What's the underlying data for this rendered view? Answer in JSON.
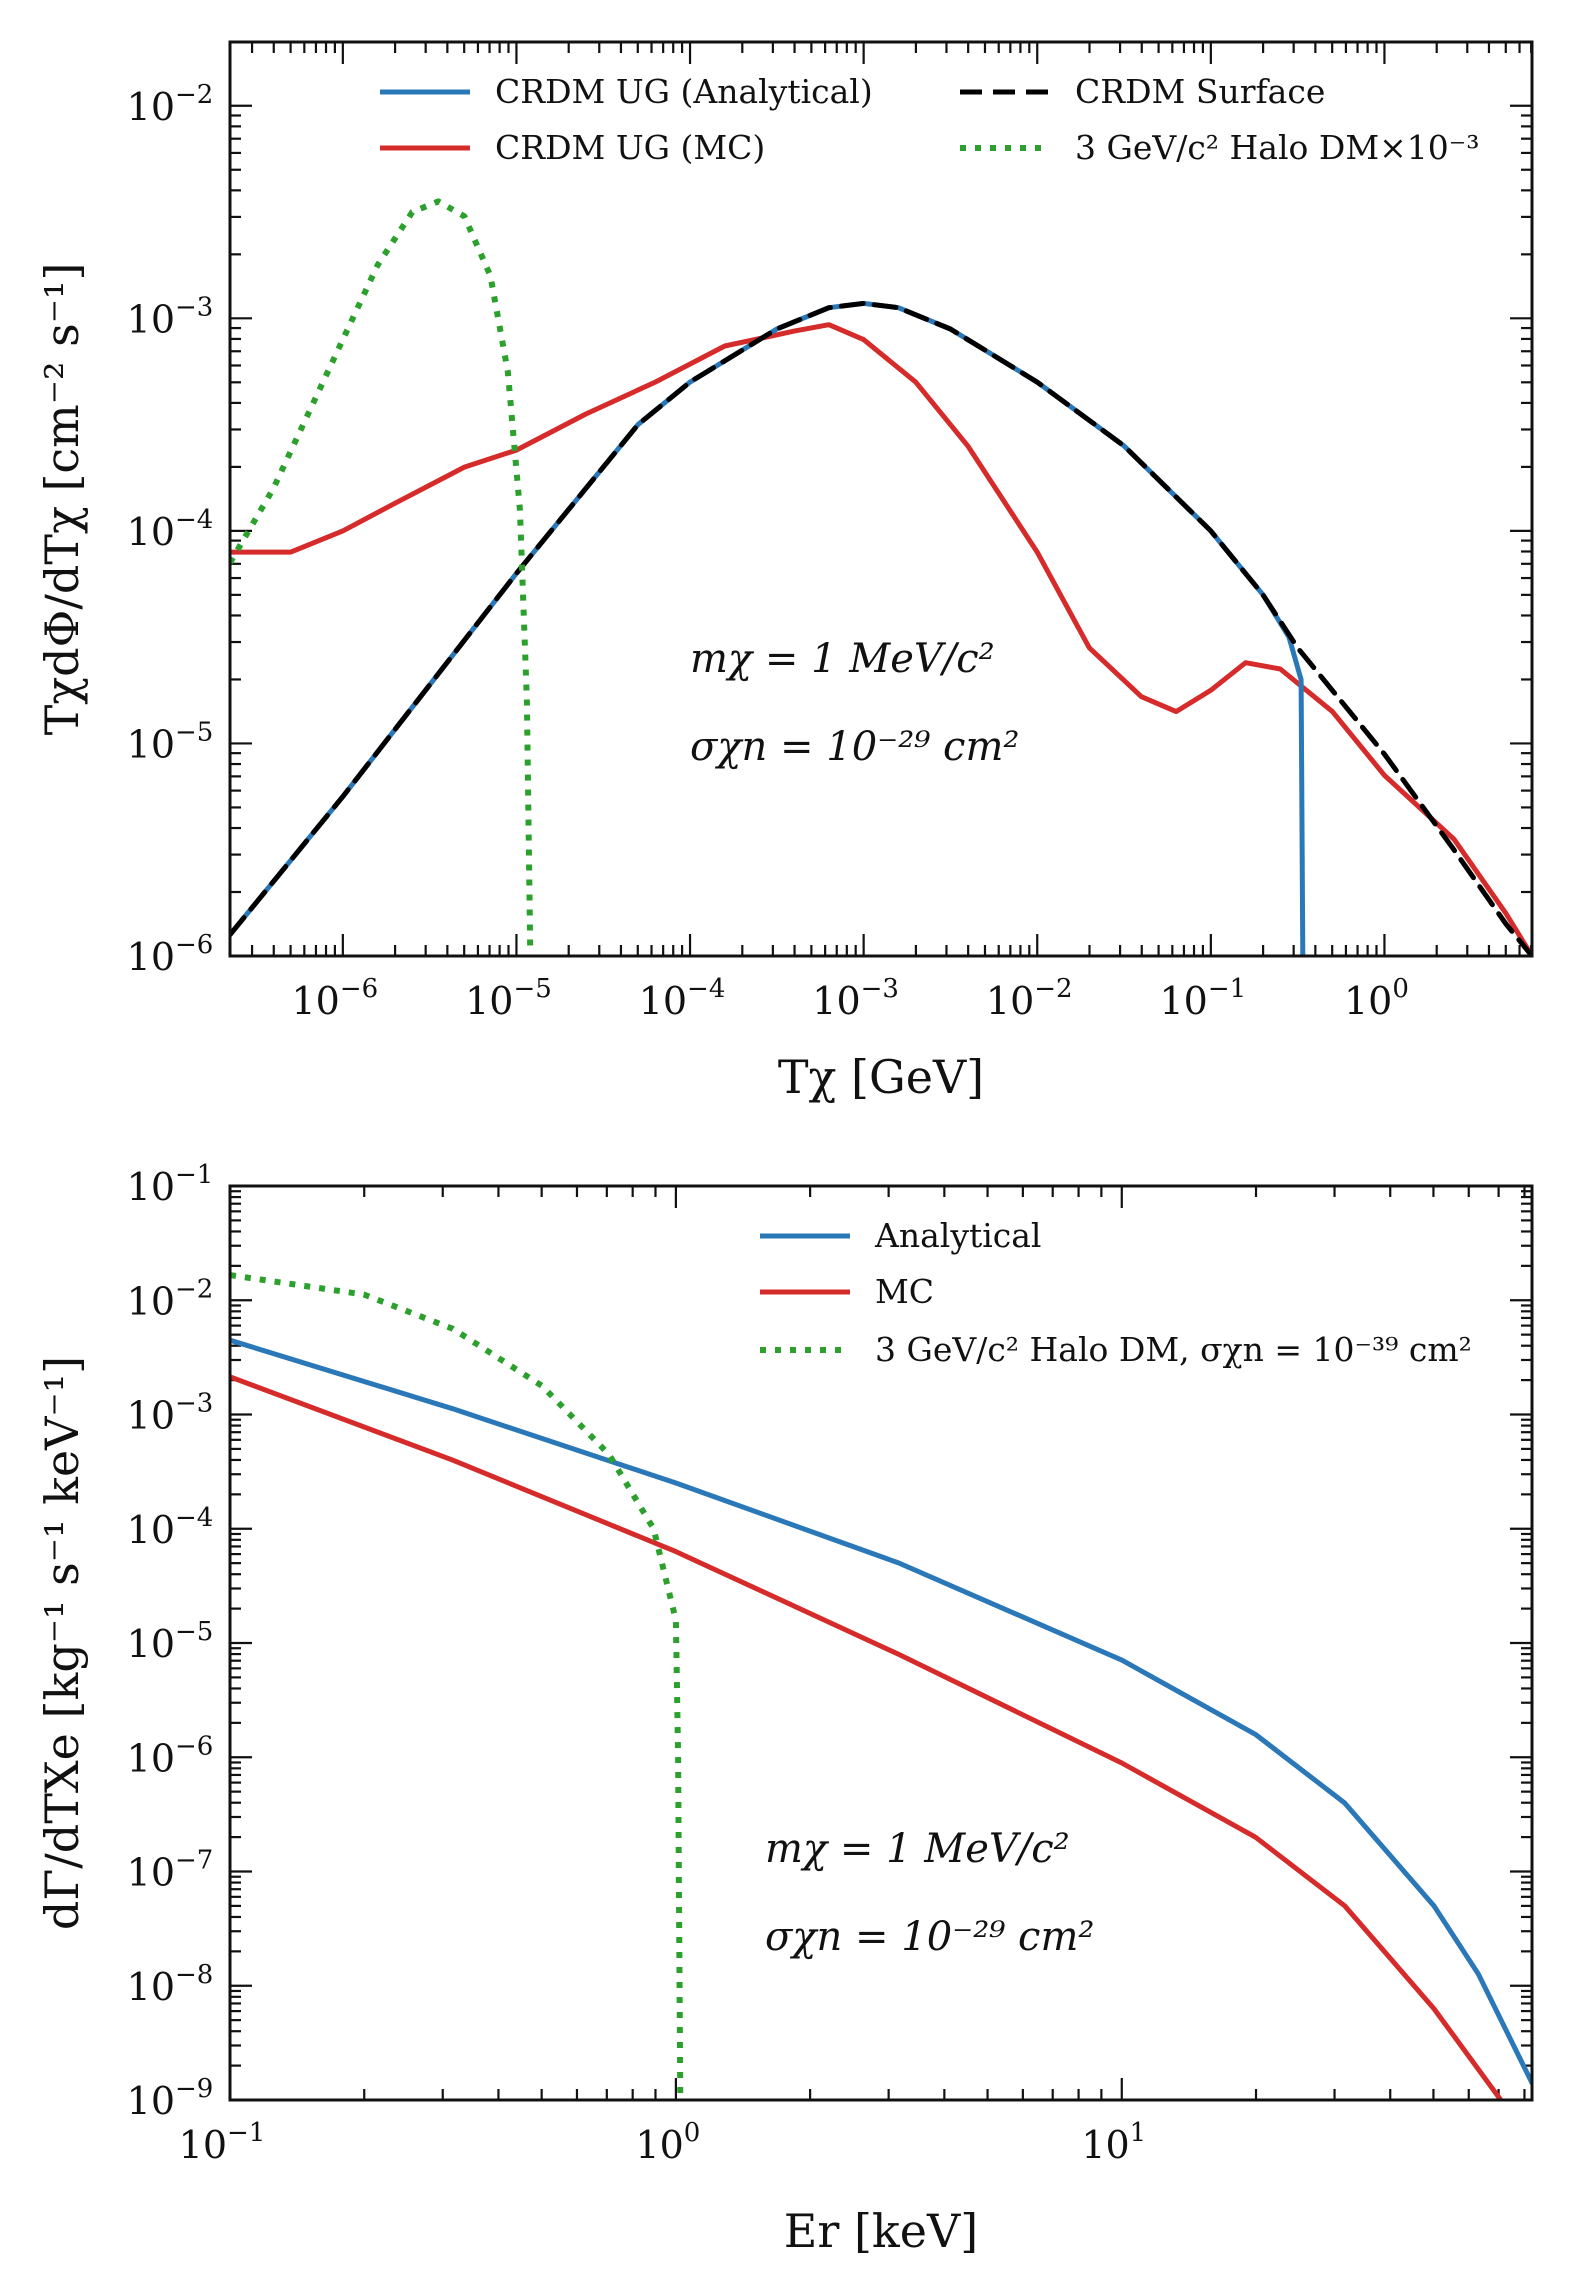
{
  "chart_data": [
    {
      "type": "line",
      "xscale": "log",
      "yscale": "log",
      "xlim_log10": [
        -6.65,
        0.85
      ],
      "ylim_log10": [
        -6,
        -1.7
      ],
      "xlabel": "Tχ [GeV]",
      "ylabel": "TχdΦ/dTχ [cm⁻² s⁻¹]",
      "xticks": [
        {
          "base": "10",
          "exp": "−6",
          "log": -6
        },
        {
          "base": "10",
          "exp": "−5",
          "log": -5
        },
        {
          "base": "10",
          "exp": "−4",
          "log": -4
        },
        {
          "base": "10",
          "exp": "−3",
          "log": -3
        },
        {
          "base": "10",
          "exp": "−2",
          "log": -2
        },
        {
          "base": "10",
          "exp": "−1",
          "log": -1
        },
        {
          "base": "10",
          "exp": "0",
          "log": 0
        }
      ],
      "yticks": [
        {
          "base": "10",
          "exp": "−6",
          "log": -6
        },
        {
          "base": "10",
          "exp": "−5",
          "log": -5
        },
        {
          "base": "10",
          "exp": "−4",
          "log": -4
        },
        {
          "base": "10",
          "exp": "−3",
          "log": -3
        },
        {
          "base": "10",
          "exp": "−2",
          "log": -2
        }
      ],
      "legend": {
        "position": "top",
        "entries": [
          {
            "label": "CRDM UG (Analytical)",
            "series": "analytical"
          },
          {
            "label": "CRDM Surface",
            "series": "surface"
          },
          {
            "label": "CRDM UG (MC)",
            "series": "mc"
          },
          {
            "label": "3 GeV/c² Halo DM×10⁻³",
            "series": "halo"
          }
        ]
      },
      "annotations": [
        "mχ = 1 MeV/c²",
        "σχn = 10⁻²⁹ cm²"
      ],
      "series": [
        {
          "name": "CRDM Surface",
          "key": "surface",
          "color": "#000000",
          "style": "dashed",
          "points_log10": [
            [
              -6.65,
              -5.9
            ],
            [
              -6.0,
              -5.25
            ],
            [
              -5.0,
              -4.2
            ],
            [
              -4.3,
              -3.5
            ],
            [
              -4.0,
              -3.3
            ],
            [
              -3.5,
              -3.05
            ],
            [
              -3.2,
              -2.95
            ],
            [
              -3.0,
              -2.93
            ],
            [
              -2.8,
              -2.95
            ],
            [
              -2.5,
              -3.05
            ],
            [
              -2.0,
              -3.3
            ],
            [
              -1.5,
              -3.6
            ],
            [
              -1.0,
              -4.0
            ],
            [
              -0.7,
              -4.3
            ],
            [
              -0.5,
              -4.55
            ],
            [
              0.0,
              -5.05
            ],
            [
              0.4,
              -5.5
            ],
            [
              0.7,
              -5.85
            ],
            [
              0.85,
              -6.0
            ]
          ]
        },
        {
          "name": "CRDM UG (Analytical)",
          "key": "analytical",
          "color": "#2a78b8",
          "style": "solid",
          "points_log10": [
            [
              -6.65,
              -5.9
            ],
            [
              -6.0,
              -5.25
            ],
            [
              -5.0,
              -4.2
            ],
            [
              -4.3,
              -3.5
            ],
            [
              -4.0,
              -3.3
            ],
            [
              -3.5,
              -3.05
            ],
            [
              -3.2,
              -2.95
            ],
            [
              -3.0,
              -2.93
            ],
            [
              -2.8,
              -2.95
            ],
            [
              -2.5,
              -3.05
            ],
            [
              -2.0,
              -3.3
            ],
            [
              -1.5,
              -3.6
            ],
            [
              -1.0,
              -4.0
            ],
            [
              -0.7,
              -4.3
            ],
            [
              -0.55,
              -4.5
            ],
            [
              -0.48,
              -4.7
            ],
            [
              -0.47,
              -6.0
            ]
          ]
        },
        {
          "name": "CRDM UG (MC)",
          "key": "mc",
          "color": "#d62b2b",
          "style": "solid",
          "points_log10": [
            [
              -6.65,
              -4.1
            ],
            [
              -6.3,
              -4.1
            ],
            [
              -6.0,
              -4.0
            ],
            [
              -5.7,
              -3.87
            ],
            [
              -5.3,
              -3.7
            ],
            [
              -5.0,
              -3.62
            ],
            [
              -4.6,
              -3.45
            ],
            [
              -4.2,
              -3.3
            ],
            [
              -3.8,
              -3.13
            ],
            [
              -3.4,
              -3.06
            ],
            [
              -3.2,
              -3.03
            ],
            [
              -3.0,
              -3.1
            ],
            [
              -2.7,
              -3.3
            ],
            [
              -2.4,
              -3.6
            ],
            [
              -2.0,
              -4.1
            ],
            [
              -1.7,
              -4.55
            ],
            [
              -1.4,
              -4.78
            ],
            [
              -1.2,
              -4.85
            ],
            [
              -1.0,
              -4.75
            ],
            [
              -0.8,
              -4.62
            ],
            [
              -0.6,
              -4.65
            ],
            [
              -0.3,
              -4.85
            ],
            [
              0.0,
              -5.15
            ],
            [
              0.4,
              -5.45
            ],
            [
              0.7,
              -5.8
            ],
            [
              0.85,
              -6.0
            ]
          ]
        },
        {
          "name": "3 GeV/c² Halo DM×10⁻³",
          "key": "halo",
          "color": "#2ca02c",
          "style": "dotted",
          "points_log10": [
            [
              -6.65,
              -4.15
            ],
            [
              -6.4,
              -3.8
            ],
            [
              -6.2,
              -3.45
            ],
            [
              -6.0,
              -3.1
            ],
            [
              -5.8,
              -2.75
            ],
            [
              -5.6,
              -2.5
            ],
            [
              -5.45,
              -2.45
            ],
            [
              -5.3,
              -2.52
            ],
            [
              -5.15,
              -2.8
            ],
            [
              -5.05,
              -3.25
            ],
            [
              -4.98,
              -3.9
            ],
            [
              -4.94,
              -4.8
            ],
            [
              -4.92,
              -6.0
            ]
          ]
        }
      ]
    },
    {
      "type": "line",
      "xscale": "log",
      "yscale": "log",
      "xlim_log10": [
        -1,
        1.92
      ],
      "ylim_log10": [
        -9,
        -1
      ],
      "xlabel": "Er [keV]",
      "ylabel": "dΓ/dTXe [kg⁻¹ s⁻¹ keV⁻¹]",
      "xticks": [
        {
          "base": "10",
          "exp": "−1",
          "log": -1
        },
        {
          "base": "10",
          "exp": "0",
          "log": 0
        },
        {
          "base": "10",
          "exp": "1",
          "log": 1
        }
      ],
      "yticks": [
        {
          "base": "10",
          "exp": "−9",
          "log": -9
        },
        {
          "base": "10",
          "exp": "−8",
          "log": -8
        },
        {
          "base": "10",
          "exp": "−7",
          "log": -7
        },
        {
          "base": "10",
          "exp": "−6",
          "log": -6
        },
        {
          "base": "10",
          "exp": "−5",
          "log": -5
        },
        {
          "base": "10",
          "exp": "−4",
          "log": -4
        },
        {
          "base": "10",
          "exp": "−3",
          "log": -3
        },
        {
          "base": "10",
          "exp": "−2",
          "log": -2
        },
        {
          "base": "10",
          "exp": "−1",
          "log": -1
        }
      ],
      "legend": {
        "position": "top-right",
        "entries": [
          {
            "label": "Analytical",
            "series": "analytical"
          },
          {
            "label": "MC",
            "series": "mc"
          },
          {
            "label": "3 GeV/c² Halo DM,  σχn = 10⁻³⁹ cm²",
            "series": "halo"
          }
        ]
      },
      "annotations": [
        "mχ = 1 MeV/c²",
        "σχn = 10⁻²⁹ cm²"
      ],
      "series": [
        {
          "name": "Analytical",
          "key": "analytical",
          "color": "#2a78b8",
          "style": "solid",
          "points_log10": [
            [
              -1.0,
              -2.35
            ],
            [
              -0.5,
              -2.95
            ],
            [
              0.0,
              -3.6
            ],
            [
              0.5,
              -4.3
            ],
            [
              1.0,
              -5.15
            ],
            [
              1.3,
              -5.8
            ],
            [
              1.5,
              -6.4
            ],
            [
              1.7,
              -7.3
            ],
            [
              1.8,
              -7.9
            ],
            [
              1.92,
              -8.85
            ]
          ]
        },
        {
          "name": "MC",
          "key": "mc",
          "color": "#d62b2b",
          "style": "solid",
          "points_log10": [
            [
              -1.0,
              -2.67
            ],
            [
              -0.5,
              -3.4
            ],
            [
              0.0,
              -4.2
            ],
            [
              0.5,
              -5.1
            ],
            [
              1.0,
              -6.05
            ],
            [
              1.3,
              -6.7
            ],
            [
              1.5,
              -7.3
            ],
            [
              1.7,
              -8.2
            ],
            [
              1.85,
              -9.0
            ]
          ]
        },
        {
          "name": "3 GeV/c² Halo DM",
          "key": "halo",
          "color": "#2ca02c",
          "style": "dotted",
          "points_log10": [
            [
              -1.0,
              -1.78
            ],
            [
              -0.7,
              -1.95
            ],
            [
              -0.5,
              -2.25
            ],
            [
              -0.3,
              -2.75
            ],
            [
              -0.15,
              -3.35
            ],
            [
              -0.05,
              -4.0
            ],
            [
              0.0,
              -4.8
            ],
            [
              0.005,
              -6.0
            ],
            [
              0.01,
              -9.0
            ]
          ]
        }
      ]
    }
  ]
}
